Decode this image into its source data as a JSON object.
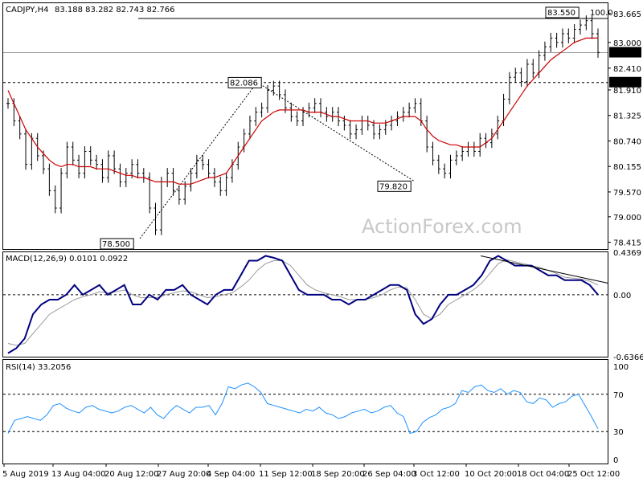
{
  "chart_data": [
    {
      "type": "candlestick",
      "title": "CADJPY,H4",
      "ohlc": {
        "open": "83.188",
        "high": "83.282",
        "low": "82.743",
        "close": "82.766"
      },
      "ylim": [
        78.26,
        83.9
      ],
      "y_ticks": [
        "83.665",
        "83.000",
        "82.410",
        "81.910",
        "81.325",
        "80.740",
        "80.155",
        "79.570",
        "79.000",
        "78.415"
      ],
      "current_price": "82.766",
      "levels": [
        {
          "label": "83.550",
          "value": 83.55
        },
        {
          "label": "82.080",
          "value": 82.08
        },
        {
          "label": "82.086",
          "value": 82.086
        },
        {
          "label": "79.820",
          "value": 79.82
        },
        {
          "label": "78.500",
          "value": 78.5
        }
      ],
      "fib_label": "100.0",
      "watermark": "ActionForex.com",
      "close_series": [
        81.6,
        81.2,
        80.9,
        80.2,
        80.8,
        80.4,
        80.1,
        79.6,
        79.2,
        80.0,
        80.6,
        80.3,
        80.0,
        80.5,
        80.3,
        80.2,
        79.9,
        80.4,
        80.1,
        79.8,
        80.0,
        80.2,
        80.0,
        79.9,
        79.2,
        78.7,
        79.8,
        80.0,
        79.6,
        79.4,
        79.7,
        80.0,
        80.3,
        80.2,
        80.0,
        79.8,
        79.6,
        79.9,
        80.2,
        80.6,
        80.9,
        81.2,
        81.4,
        81.5,
        81.9,
        82.0,
        81.8,
        81.5,
        81.3,
        81.2,
        81.4,
        81.5,
        81.6,
        81.4,
        81.3,
        81.4,
        81.2,
        81.1,
        80.9,
        81.0,
        81.2,
        81.1,
        80.9,
        81.0,
        81.1,
        81.2,
        81.3,
        81.4,
        81.5,
        81.6,
        81.2,
        80.6,
        80.3,
        80.1,
        80.0,
        80.3,
        80.4,
        80.5,
        80.6,
        80.5,
        80.8,
        80.7,
        80.9,
        81.2,
        81.7,
        82.2,
        82.3,
        82.1,
        82.5,
        82.3,
        82.7,
        82.9,
        83.1,
        83.0,
        83.2,
        83.1,
        83.3,
        83.4,
        83.5,
        83.2,
        82.77
      ],
      "ma_series": [
        81.9,
        81.6,
        81.3,
        81.0,
        80.8,
        80.6,
        80.45,
        80.3,
        80.2,
        80.15,
        80.2,
        80.2,
        80.15,
        80.15,
        80.15,
        80.1,
        80.1,
        80.1,
        80.05,
        80.0,
        79.95,
        79.95,
        79.9,
        79.9,
        79.85,
        79.8,
        79.8,
        79.8,
        79.8,
        79.75,
        79.75,
        79.75,
        79.8,
        79.85,
        79.9,
        79.9,
        79.95,
        80.0,
        80.2,
        80.4,
        80.6,
        80.8,
        81.0,
        81.2,
        81.3,
        81.4,
        81.45,
        81.45,
        81.45,
        81.45,
        81.45,
        81.4,
        81.4,
        81.4,
        81.35,
        81.3,
        81.3,
        81.25,
        81.2,
        81.2,
        81.2,
        81.2,
        81.15,
        81.15,
        81.15,
        81.2,
        81.25,
        81.3,
        81.3,
        81.3,
        81.2,
        81.0,
        80.85,
        80.75,
        80.7,
        80.65,
        80.65,
        80.6,
        80.6,
        80.6,
        80.6,
        80.7,
        80.8,
        81.0,
        81.2,
        81.4,
        81.6,
        81.8,
        82.0,
        82.15,
        82.3,
        82.45,
        82.6,
        82.7,
        82.8,
        82.9,
        83.0,
        83.05,
        83.1,
        83.1,
        83.1
      ]
    },
    {
      "type": "line",
      "title": "MACD(12,26,9) 0.0101 0.0922",
      "ylim": [
        -0.6366,
        0.4369
      ],
      "y_ticks": [
        "0.4369",
        "0.00",
        "-0.6366"
      ],
      "macd": [
        -0.6,
        -0.55,
        -0.45,
        -0.2,
        -0.1,
        -0.05,
        -0.05,
        0.0,
        0.1,
        0.0,
        0.05,
        0.1,
        0.0,
        0.05,
        0.1,
        -0.1,
        -0.1,
        0.0,
        -0.05,
        0.05,
        0.05,
        0.1,
        0.0,
        -0.05,
        -0.1,
        0.0,
        0.05,
        0.05,
        0.2,
        0.35,
        0.35,
        0.4,
        0.38,
        0.35,
        0.2,
        0.05,
        0.0,
        0.0,
        0.0,
        -0.05,
        -0.05,
        -0.1,
        -0.05,
        -0.05,
        0.0,
        0.05,
        0.1,
        0.1,
        0.05,
        -0.2,
        -0.3,
        -0.25,
        -0.1,
        0.0,
        0.0,
        0.05,
        0.1,
        0.2,
        0.35,
        0.4,
        0.35,
        0.3,
        0.3,
        0.3,
        0.25,
        0.2,
        0.2,
        0.15,
        0.15,
        0.15,
        0.1,
        0.0
      ],
      "signal": [
        -0.5,
        -0.52,
        -0.5,
        -0.4,
        -0.3,
        -0.2,
        -0.15,
        -0.1,
        -0.05,
        -0.02,
        0.0,
        0.03,
        0.02,
        0.03,
        0.05,
        0.0,
        -0.03,
        -0.03,
        -0.03,
        0.0,
        0.02,
        0.04,
        0.03,
        0.0,
        -0.03,
        -0.02,
        0.0,
        0.02,
        0.08,
        0.15,
        0.25,
        0.32,
        0.35,
        0.35,
        0.3,
        0.2,
        0.1,
        0.05,
        0.02,
        0.0,
        -0.02,
        -0.05,
        -0.05,
        -0.05,
        -0.03,
        0.0,
        0.05,
        0.08,
        0.07,
        -0.05,
        -0.2,
        -0.25,
        -0.2,
        -0.1,
        -0.05,
        0.0,
        0.05,
        0.12,
        0.22,
        0.32,
        0.36,
        0.34,
        0.32,
        0.3,
        0.28,
        0.25,
        0.22,
        0.18,
        0.17,
        0.16,
        0.14,
        0.1
      ]
    },
    {
      "type": "line",
      "title": "RSI(14) 33.2056",
      "ylim": [
        0,
        100
      ],
      "y_ticks": [
        "100",
        "70",
        "30",
        "0"
      ],
      "levels": [
        70,
        30
      ],
      "rsi": [
        28,
        42,
        44,
        46,
        44,
        42,
        48,
        58,
        60,
        55,
        52,
        50,
        56,
        58,
        54,
        52,
        50,
        52,
        56,
        58,
        54,
        50,
        56,
        48,
        44,
        52,
        58,
        54,
        50,
        56,
        56,
        58,
        48,
        60,
        78,
        76,
        80,
        82,
        78,
        72,
        60,
        58,
        56,
        54,
        52,
        50,
        54,
        52,
        56,
        50,
        48,
        44,
        46,
        50,
        52,
        54,
        50,
        52,
        56,
        58,
        50,
        46,
        28,
        30,
        40,
        45,
        48,
        54,
        56,
        60,
        74,
        72,
        78,
        80,
        74,
        72,
        76,
        70,
        74,
        72,
        62,
        60,
        66,
        64,
        56,
        60,
        62,
        68,
        70,
        58,
        46,
        33
      ]
    }
  ],
  "x_axis": [
    "5 Aug 2019",
    "13 Aug 04:00",
    "20 Aug 12:00",
    "27 Aug 20:00",
    "4 Sep 04:00",
    "11 Sep 12:00",
    "18 Sep 20:00",
    "26 Sep 04:00",
    "3 Oct 12:00",
    "10 Oct 20:00",
    "18 Oct 04:00",
    "25 Oct 12:00"
  ]
}
